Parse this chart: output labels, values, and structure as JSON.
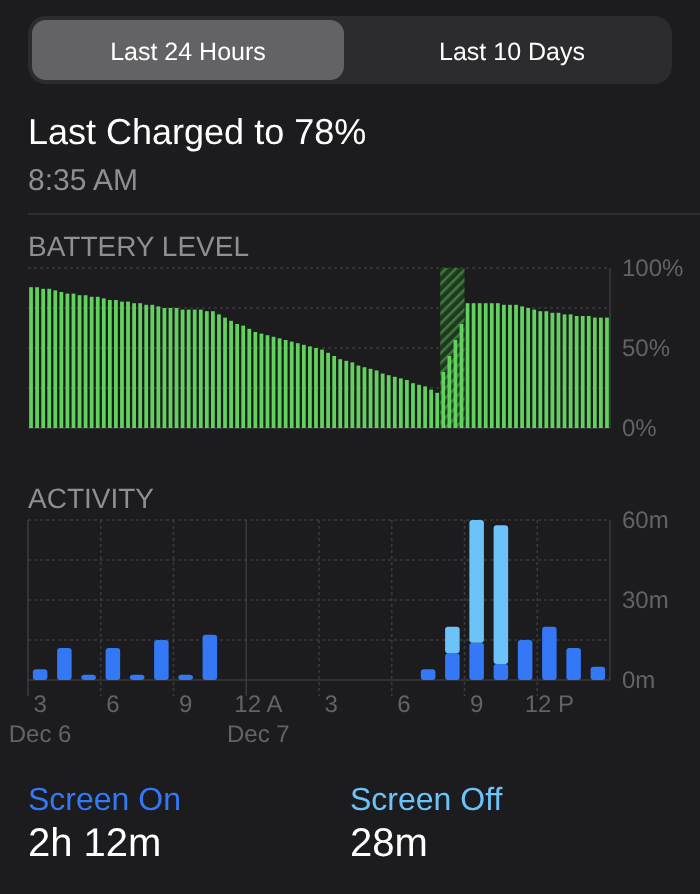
{
  "chart_data": [
    {
      "type": "other",
      "title": "Last Charged to 78%",
      "subtitle": "8:35 AM",
      "annotations": [
        "Last 24 Hours",
        "Last 10 Days"
      ]
    },
    {
      "type": "bar",
      "title": "BATTERY LEVEL",
      "color": "#62d25e",
      "categories": [
        null,
        null,
        null,
        null,
        null,
        null,
        null,
        null,
        null,
        null,
        null,
        null,
        null,
        null,
        null,
        null,
        null,
        null,
        null,
        null,
        null,
        null,
        null,
        null,
        null,
        null,
        null,
        null,
        null,
        null,
        null,
        null,
        null,
        null,
        null,
        null,
        null,
        null,
        null,
        null,
        null,
        null,
        null,
        null,
        null,
        null,
        null,
        null,
        null,
        null,
        null,
        null,
        null,
        null,
        null,
        null,
        null,
        null,
        null,
        null,
        null,
        null,
        null,
        null,
        null,
        null,
        null,
        null,
        null,
        null,
        null,
        null,
        null,
        null,
        null,
        null,
        null,
        null,
        null,
        null,
        null,
        null,
        null,
        null,
        null,
        null,
        null,
        null,
        null,
        null,
        null,
        null,
        null,
        null,
        null,
        null
      ],
      "values": [
        88,
        88,
        87,
        87,
        86,
        85,
        84,
        84,
        83,
        83,
        82,
        82,
        81,
        80,
        80,
        79,
        79,
        78,
        78,
        77,
        77,
        76,
        75,
        75,
        75,
        74,
        74,
        74,
        74,
        73,
        73,
        71,
        69,
        67,
        65,
        64,
        62,
        60,
        59,
        58,
        57,
        56,
        55,
        54,
        53,
        52,
        51,
        50,
        49,
        47,
        45,
        43,
        42,
        41,
        39,
        38,
        37,
        36,
        34,
        33,
        32,
        31,
        30,
        28,
        27,
        26,
        24,
        22,
        35,
        45,
        55,
        65,
        78,
        78,
        78,
        78,
        78,
        78,
        77,
        77,
        77,
        76,
        75,
        74,
        73,
        73,
        72,
        72,
        71,
        71,
        70,
        70,
        70,
        69,
        69,
        69
      ],
      "ylim": [
        0,
        100
      ],
      "yticks": [
        {
          "value": 0,
          "label": "0%"
        },
        {
          "value": 25,
          "label": null
        },
        {
          "value": 50,
          "label": "50%"
        },
        {
          "value": 75,
          "label": null
        },
        {
          "value": 100,
          "label": "100%"
        }
      ],
      "grid": "y"
    },
    {
      "type": "bar",
      "title": "ACTIVITY",
      "stacked": true,
      "legend": "bottom",
      "annotations": [
        "2h 12m",
        "28m"
      ],
      "categories": [
        "3\nDec 6",
        null,
        null,
        "6",
        null,
        null,
        "9",
        null,
        null,
        "12 A\nDec 7",
        null,
        null,
        "3",
        null,
        null,
        "6",
        null,
        null,
        "9",
        null,
        null,
        "12 P",
        null,
        null
      ],
      "series": [
        {
          "name": "Screen On",
          "color": "#3478f6",
          "values": [
            4,
            12,
            2,
            12,
            2,
            15,
            2,
            17,
            0,
            0,
            0,
            0,
            0,
            0,
            0,
            0,
            4,
            10,
            14,
            6,
            15,
            20,
            12,
            5
          ]
        },
        {
          "name": "Screen Off",
          "color": "#6cc3f9",
          "values": [
            0,
            0,
            0,
            0,
            0,
            0,
            0,
            0,
            0,
            0,
            0,
            0,
            0,
            0,
            0,
            0,
            0,
            10,
            46,
            52,
            0,
            0,
            0,
            0
          ]
        }
      ],
      "ylim": [
        0,
        60
      ],
      "yticks": [
        {
          "value": 0,
          "label": "0m"
        },
        {
          "value": 15,
          "label": null
        },
        {
          "value": 30,
          "label": "30m"
        },
        {
          "value": 45,
          "label": null
        },
        {
          "value": 60,
          "label": "60m"
        }
      ],
      "grid": true
    }
  ]
}
